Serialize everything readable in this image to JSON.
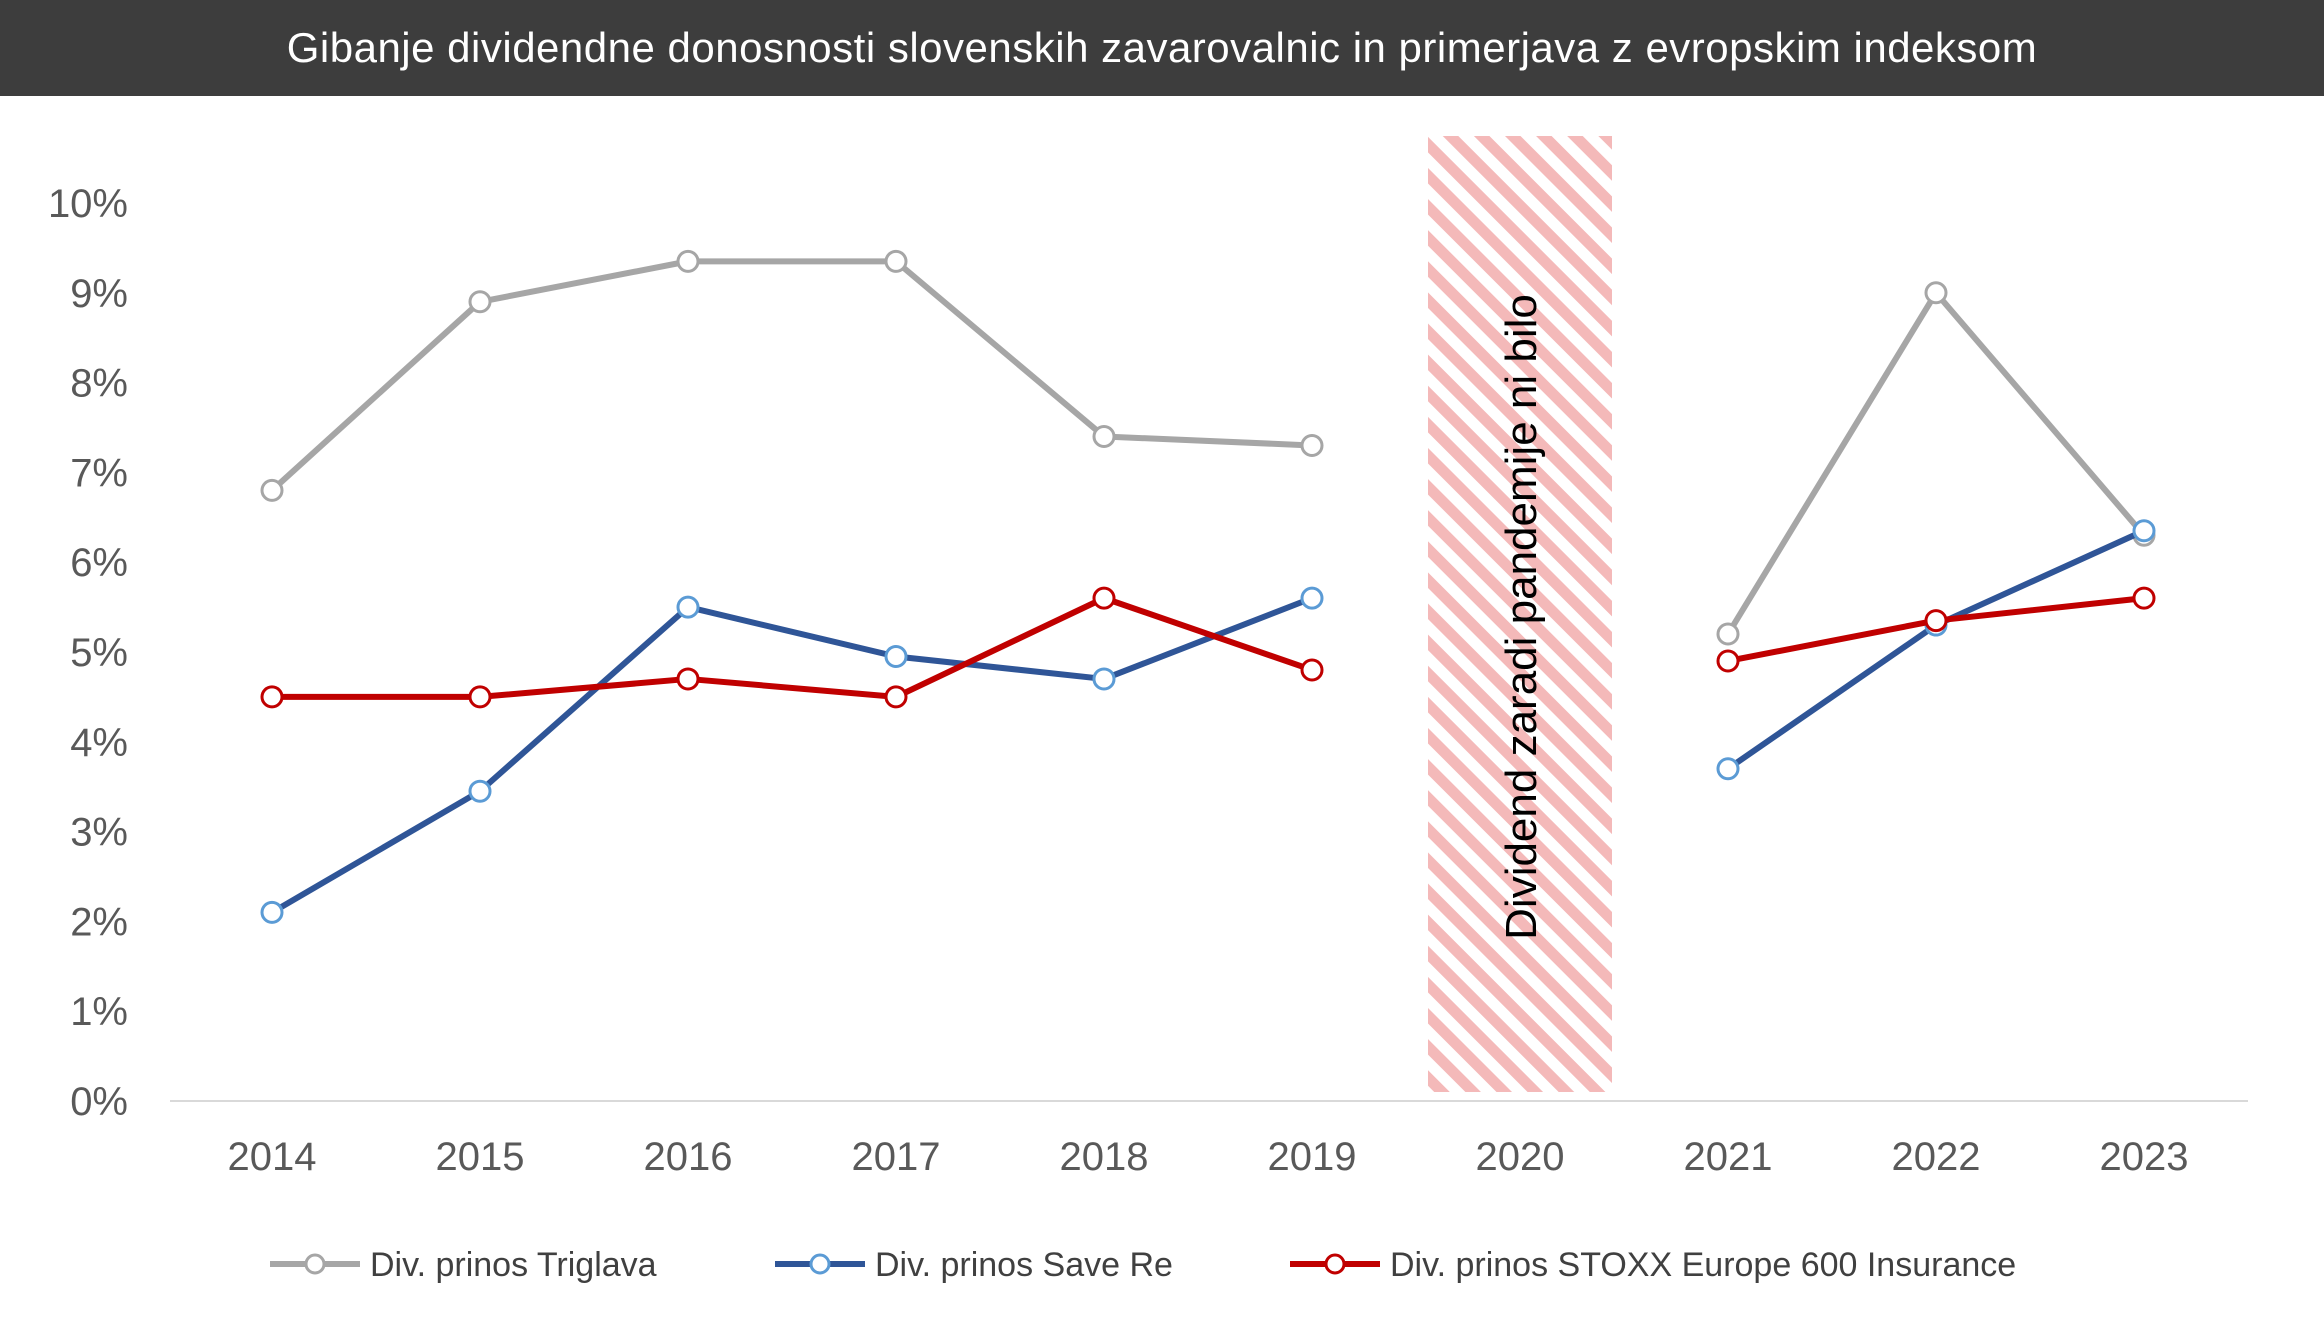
{
  "title": "Gibanje dividendne donosnosti slovenskih zavarovalnic in primerjava z evropskim indeksom",
  "chart_data": {
    "type": "line",
    "title": "Gibanje dividendne donosnosti slovenskih zavarovalnic in primerjava z evropskim indeksom",
    "categories": [
      "2014",
      "2015",
      "2016",
      "2017",
      "2018",
      "2019",
      "2020",
      "2021",
      "2022",
      "2023"
    ],
    "ylim": [
      0,
      10
    ],
    "yticks": [
      "0%",
      "1%",
      "2%",
      "3%",
      "4%",
      "5%",
      "6%",
      "7%",
      "8%",
      "9%",
      "10%"
    ],
    "xlabel": "",
    "ylabel": "",
    "grid": false,
    "legend_position": "bottom",
    "series": [
      {
        "name": "Div. prinos Triglava",
        "color": "#a6a6a6",
        "marker_stroke": "#a6a6a6",
        "values": [
          6.8,
          8.9,
          9.35,
          9.35,
          7.4,
          7.3,
          null,
          5.2,
          9.0,
          6.3
        ]
      },
      {
        "name": "Div. prinos Save Re",
        "color": "#2f5597",
        "marker_stroke": "#5b9bd5",
        "values": [
          2.1,
          3.45,
          5.5,
          4.95,
          4.7,
          5.6,
          null,
          3.7,
          5.3,
          6.35
        ]
      },
      {
        "name": "Div. prinos STOXX Europe 600 Insurance",
        "color": "#c00000",
        "marker_stroke": "#c00000",
        "values": [
          4.5,
          4.5,
          4.7,
          4.5,
          5.6,
          4.8,
          null,
          4.9,
          5.35,
          5.6
        ]
      }
    ],
    "annotation": {
      "text": "Dividend zaradi pandemije ni bilo",
      "category": "2020",
      "hatch_color": "#f4b9b9"
    }
  }
}
